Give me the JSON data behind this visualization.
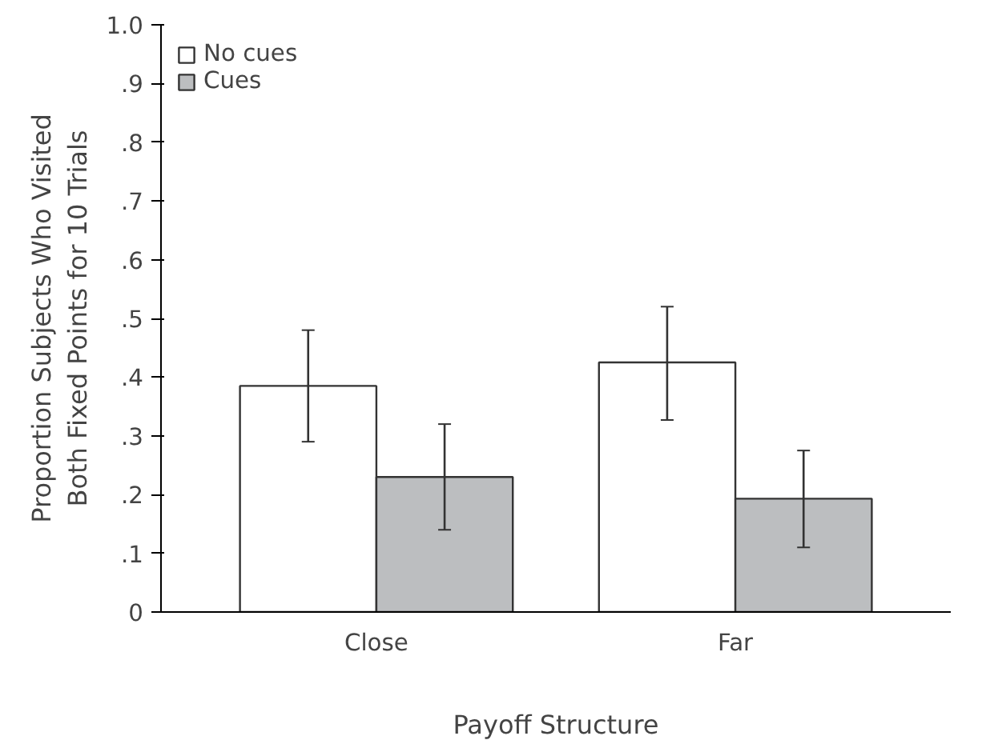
{
  "chart_data": {
    "type": "bar",
    "xlabel": "Payoff Structure",
    "ylabel": "Proportion Subjects Who Visited\nBoth Fixed Points for 10 Trials",
    "categories": [
      "Close",
      "Far"
    ],
    "series": [
      {
        "name": "No cues",
        "color": "#ffffff",
        "values": [
          0.385,
          0.425
        ],
        "errors": [
          [
            0.29,
            0.48
          ],
          [
            0.327,
            0.52
          ]
        ]
      },
      {
        "name": "Cues",
        "color": "#bcbec0",
        "values": [
          0.23,
          0.193
        ],
        "errors": [
          [
            0.14,
            0.32
          ],
          [
            0.11,
            0.275
          ]
        ]
      }
    ],
    "ylim": [
      0,
      1
    ],
    "yticks": [
      {
        "value": 0,
        "label": "0"
      },
      {
        "value": 0.1,
        "label": ".1"
      },
      {
        "value": 0.2,
        "label": ".2"
      },
      {
        "value": 0.3,
        "label": ".3"
      },
      {
        "value": 0.4,
        "label": ".4"
      },
      {
        "value": 0.5,
        "label": ".5"
      },
      {
        "value": 0.6,
        "label": ".6"
      },
      {
        "value": 0.7,
        "label": ".7"
      },
      {
        "value": 0.8,
        "label": ".8"
      },
      {
        "value": 0.9,
        "label": ".9"
      },
      {
        "value": 1,
        "label": "1.0"
      }
    ],
    "grid": false,
    "legend": "top left"
  }
}
